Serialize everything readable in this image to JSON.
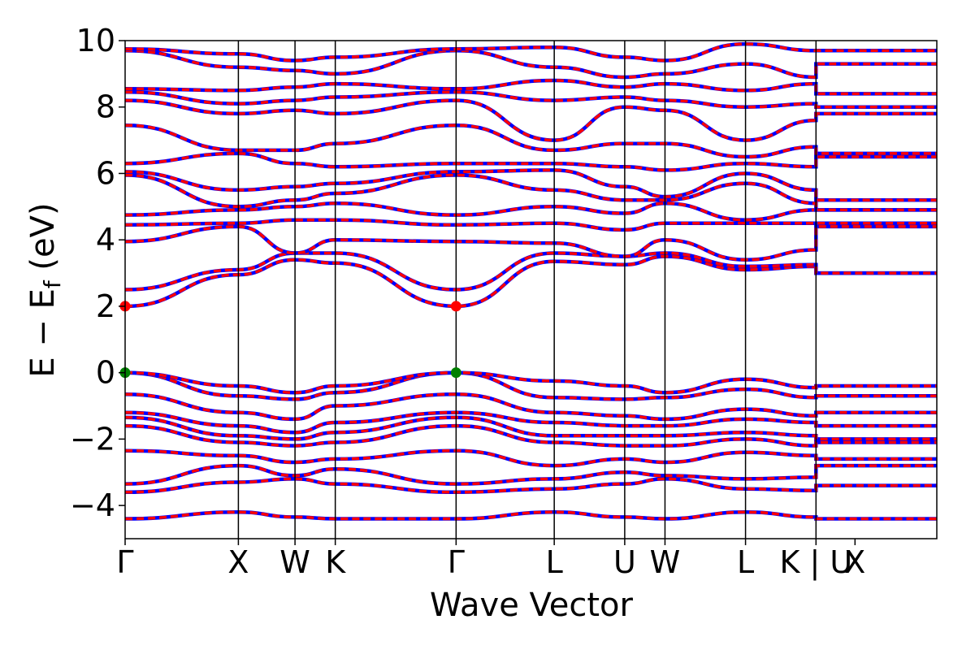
{
  "chart_data": {
    "type": "line",
    "xlabel": "Wave Vector",
    "ylabel_parts": {
      "main": "E − E",
      "sub": "f",
      "unit": " (eV)"
    },
    "ylim": [
      -5,
      10
    ],
    "yticks": [
      -4,
      -2,
      0,
      2,
      4,
      6,
      8,
      10
    ],
    "ytick_labels": [
      "−4",
      "−2",
      "0",
      "2",
      "4",
      "6",
      "8",
      "10"
    ],
    "xlim": [
      0,
      6.45
    ],
    "kpoints": [
      {
        "label": "Γ",
        "x": 0.0
      },
      {
        "label": "X",
        "x": 0.9
      },
      {
        "label": "W",
        "x": 1.35
      },
      {
        "label": "K",
        "x": 1.67
      },
      {
        "label": "Γ",
        "x": 2.63
      },
      {
        "label": "L",
        "x": 3.41
      },
      {
        "label": "U",
        "x": 3.97
      },
      {
        "label": "W",
        "x": 4.29
      },
      {
        "label": "L",
        "x": 4.93
      },
      {
        "label": "K | U",
        "x": 5.49
      },
      {
        "label": "X",
        "x": 5.8
      }
    ],
    "vertical_lines_x": [
      0.9,
      1.35,
      1.67,
      2.63,
      3.41,
      3.97,
      4.29,
      4.93,
      5.49
    ],
    "series_colors": {
      "spin_up": "#0000ff",
      "spin_down": "#ff0000"
    },
    "points": [
      {
        "name": "CBM",
        "color": "#ff0000",
        "coords": [
          [
            0.0,
            2.0
          ],
          [
            2.63,
            2.0
          ]
        ]
      },
      {
        "name": "VBM",
        "color": "#008000",
        "coords": [
          [
            0.0,
            0.0
          ],
          [
            2.63,
            0.0
          ]
        ]
      }
    ],
    "bands": [
      [
        -4.4,
        -4.2,
        -4.35,
        -4.4,
        -4.4,
        -4.2,
        -4.35,
        -4.4,
        -4.2,
        -4.35,
        -4.4,
        -4.4
      ],
      [
        -3.6,
        -3.3,
        -3.2,
        -3.35,
        -3.6,
        -3.5,
        -3.35,
        -3.2,
        -3.5,
        -3.55,
        -3.4,
        -3.4
      ],
      [
        -3.35,
        -2.8,
        -3.1,
        -2.9,
        -3.35,
        -3.2,
        -3.0,
        -3.1,
        -3.2,
        -3.15,
        -2.8,
        -2.8
      ],
      [
        -2.35,
        -2.5,
        -2.7,
        -2.6,
        -2.35,
        -2.8,
        -2.6,
        -2.7,
        -2.4,
        -2.5,
        -2.6,
        -2.6
      ],
      [
        -1.6,
        -2.1,
        -2.2,
        -2.1,
        -1.6,
        -2.1,
        -2.2,
        -2.2,
        -2.0,
        -2.2,
        -2.1,
        -2.1
      ],
      [
        -1.35,
        -1.9,
        -2.0,
        -1.8,
        -1.35,
        -1.9,
        -1.9,
        -1.9,
        -1.8,
        -1.9,
        -2.0,
        -2.0
      ],
      [
        -1.2,
        -1.6,
        -1.8,
        -1.5,
        -1.2,
        -1.5,
        -1.6,
        -1.6,
        -1.4,
        -1.5,
        -1.6,
        -1.6
      ],
      [
        -0.65,
        -1.2,
        -1.4,
        -1.0,
        -0.65,
        -1.2,
        -1.3,
        -1.4,
        -1.1,
        -1.3,
        -1.2,
        -1.2
      ],
      [
        0.0,
        -0.7,
        -0.8,
        -0.6,
        0.0,
        -0.75,
        -0.8,
        -0.75,
        -0.5,
        -0.75,
        -0.7,
        -0.7
      ],
      [
        0.0,
        -0.4,
        -0.6,
        -0.4,
        0.0,
        -0.25,
        -0.4,
        -0.6,
        -0.2,
        -0.45,
        -0.4,
        -0.4
      ],
      [
        2.0,
        2.95,
        3.4,
        3.3,
        2.0,
        3.35,
        3.25,
        3.5,
        3.1,
        3.2,
        3.0,
        3.0
      ],
      [
        2.5,
        3.1,
        3.6,
        3.6,
        2.5,
        3.6,
        3.5,
        3.6,
        3.2,
        3.25,
        3.0,
        3.0
      ],
      [
        3.95,
        4.4,
        3.6,
        4.0,
        3.95,
        3.9,
        3.5,
        4.0,
        3.4,
        3.7,
        4.4,
        4.4
      ],
      [
        4.45,
        4.5,
        4.6,
        4.6,
        4.45,
        4.5,
        4.3,
        4.5,
        4.5,
        4.5,
        4.5,
        4.5
      ],
      [
        4.75,
        4.9,
        5.0,
        5.1,
        4.75,
        5.0,
        4.8,
        5.1,
        4.6,
        4.9,
        4.9,
        4.9
      ],
      [
        5.95,
        5.0,
        5.2,
        5.4,
        5.95,
        5.5,
        5.2,
        5.2,
        5.7,
        5.1,
        4.9,
        4.9
      ],
      [
        6.05,
        5.5,
        5.6,
        5.7,
        6.05,
        6.1,
        5.6,
        5.3,
        6.0,
        5.5,
        5.2,
        5.2
      ],
      [
        6.3,
        6.6,
        6.3,
        6.2,
        6.3,
        6.3,
        6.2,
        6.1,
        6.3,
        6.2,
        6.5,
        6.5
      ],
      [
        7.45,
        6.7,
        6.7,
        6.9,
        7.45,
        6.7,
        6.9,
        6.9,
        6.5,
        6.8,
        6.6,
        6.6
      ],
      [
        8.2,
        7.8,
        7.9,
        7.8,
        8.2,
        7.0,
        8.0,
        7.9,
        7.0,
        7.6,
        7.8,
        7.8
      ],
      [
        8.45,
        8.1,
        8.2,
        8.3,
        8.45,
        8.2,
        8.3,
        8.2,
        8.0,
        8.1,
        8.0,
        8.0
      ],
      [
        8.55,
        8.5,
        8.6,
        8.7,
        8.55,
        8.8,
        8.6,
        8.7,
        8.5,
        8.7,
        8.4,
        8.4
      ],
      [
        9.7,
        9.2,
        9.1,
        9.0,
        9.7,
        9.2,
        8.9,
        9.0,
        9.3,
        8.9,
        9.3,
        9.3
      ],
      [
        9.75,
        9.6,
        9.4,
        9.5,
        9.75,
        9.8,
        9.5,
        9.4,
        9.9,
        9.7,
        9.7,
        9.7
      ]
    ]
  }
}
